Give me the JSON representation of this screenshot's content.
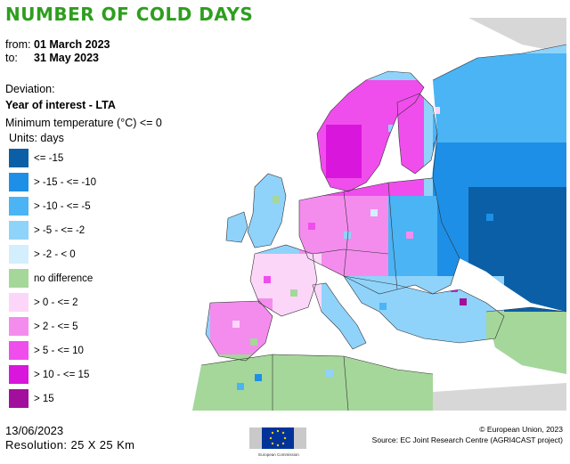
{
  "title": "NUMBER OF COLD DAYS",
  "period": {
    "from_label": "from:",
    "from_value": "01 March 2023",
    "to_label": "to:",
    "to_value": "31 May 2023"
  },
  "deviation_label": "Deviation:",
  "deviation_value": "Year of interest - LTA",
  "indicator": "Minimum temperature (°C) <= 0",
  "units": "Units: days",
  "legend": [
    {
      "label": "<= -15",
      "color": "#0b5fa6"
    },
    {
      "label": "> -15 - <= -10",
      "color": "#1e8fe6"
    },
    {
      "label": "> -10 - <= -5",
      "color": "#4ab4f5"
    },
    {
      "label": "> -5 - <= -2",
      "color": "#8fd3fb"
    },
    {
      "label": "> -2 - < 0",
      "color": "#d3eefc"
    },
    {
      "label": "no difference",
      "color": "#a5d79a"
    },
    {
      "label": "> 0 - <= 2",
      "color": "#fcd6f8"
    },
    {
      "label": "> 2 - <= 5",
      "color": "#f48cee"
    },
    {
      "label": "> 5 - <= 10",
      "color": "#f04ded"
    },
    {
      "label": "> 10 - <= 15",
      "color": "#d916db"
    },
    {
      "label": "> 15",
      "color": "#a20f9c"
    }
  ],
  "map_colors": {
    "sea": "#ffffff",
    "outside_land": "#d7d7d7",
    "border": "#333333"
  },
  "footer": {
    "date": "13/06/2023",
    "resolution": "Resolution: 25 X 25 Km",
    "copyright": "© European Union, 2023",
    "source": "Source: EC Joint Research Centre (AGRI4CAST project)"
  },
  "logo_text": "European Commission"
}
